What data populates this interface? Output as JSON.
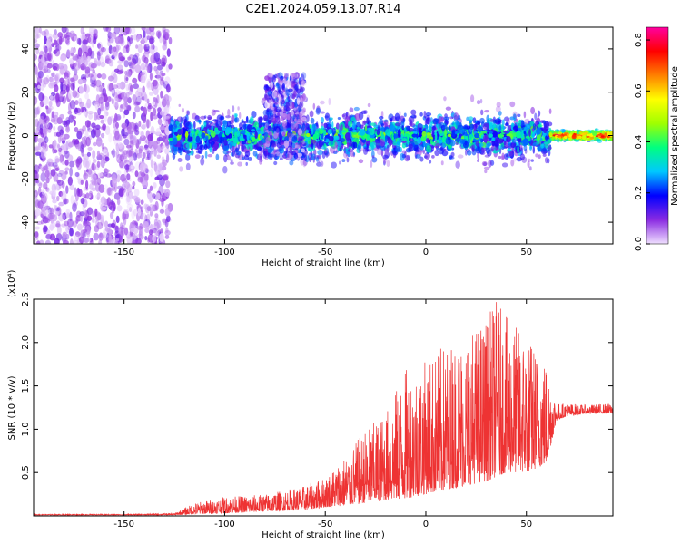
{
  "figure": {
    "title": "C2E1.2024.059.13.07.R14"
  },
  "chart_data": [
    {
      "type": "heatmap",
      "title": "C2E1.2024.059.13.07.R14",
      "xlabel": "Height of straight line (km)",
      "ylabel": "Frequency (Hz)",
      "xlim": [
        -195,
        93
      ],
      "ylim": [
        -50,
        50
      ],
      "x_ticks": [
        -150,
        -100,
        -50,
        0,
        50
      ],
      "y_ticks": [
        -40,
        -20,
        0,
        20,
        40
      ],
      "colorbar": {
        "label": "Normalized spectral amplitude",
        "range": [
          0.0,
          0.85
        ],
        "ticks": [
          0.0,
          0.2,
          0.4,
          0.6,
          0.8
        ],
        "colormap": [
          "#f0e0ff",
          "#8a2be2",
          "#0000ff",
          "#00c8ff",
          "#00ff80",
          "#a0ff00",
          "#ffff00",
          "#ff8000",
          "#ff0000",
          "#ff00a0"
        ]
      },
      "regions": [
        {
          "x_range": [
            -195,
            -127
          ],
          "freq_range": [
            -50,
            50
          ],
          "amplitude": [
            0.0,
            0.12
          ],
          "note_value": "scattered"
        },
        {
          "x_range": [
            -127,
            62
          ],
          "freq_center": [
            0,
            0
          ],
          "freq_halfwidth_typical": 10,
          "amplitude_peak": 0.4
        },
        {
          "x_range": [
            -80,
            -60
          ],
          "freq_range": [
            -10,
            28
          ],
          "amplitude_peak": 0.25
        },
        {
          "x_range": [
            62,
            93
          ],
          "freq_center": [
            0,
            0
          ],
          "freq_halfwidth_typical": 3,
          "amplitude_peak": 0.85
        }
      ],
      "grid": false
    },
    {
      "type": "line",
      "title": "",
      "xlabel": "Height of straight line (km)",
      "ylabel": "SNR (10 * v/v)",
      "ylabel_scale": "(x10⁴)",
      "xlim": [
        -195,
        93
      ],
      "ylim": [
        0,
        2.5
      ],
      "x_ticks": [
        -150,
        -100,
        -50,
        0,
        50
      ],
      "y_ticks": [
        0.5,
        1.0,
        1.5,
        2.0,
        2.5
      ],
      "series": [
        {
          "color": "#ee3333",
          "envelope_x": [
            -195,
            -150,
            -125,
            -115,
            -100,
            -80,
            -60,
            -50,
            -40,
            -30,
            -20,
            -10,
            0,
            10,
            20,
            30,
            35,
            40,
            50,
            60,
            65,
            70,
            80,
            93
          ],
          "envelope_min": [
            0.01,
            0.01,
            0.01,
            0.02,
            0.03,
            0.05,
            0.07,
            0.1,
            0.12,
            0.15,
            0.18,
            0.2,
            0.25,
            0.3,
            0.35,
            0.4,
            0.45,
            0.5,
            0.5,
            0.6,
            1.1,
            1.15,
            1.18,
            1.18
          ],
          "envelope_max": [
            0.02,
            0.02,
            0.03,
            0.15,
            0.22,
            0.25,
            0.35,
            0.45,
            0.7,
            1.0,
            1.2,
            1.7,
            1.8,
            2.0,
            2.1,
            2.3,
            2.5,
            2.3,
            2.1,
            1.8,
            1.3,
            1.3,
            1.28,
            1.3
          ]
        }
      ],
      "grid": false
    }
  ]
}
